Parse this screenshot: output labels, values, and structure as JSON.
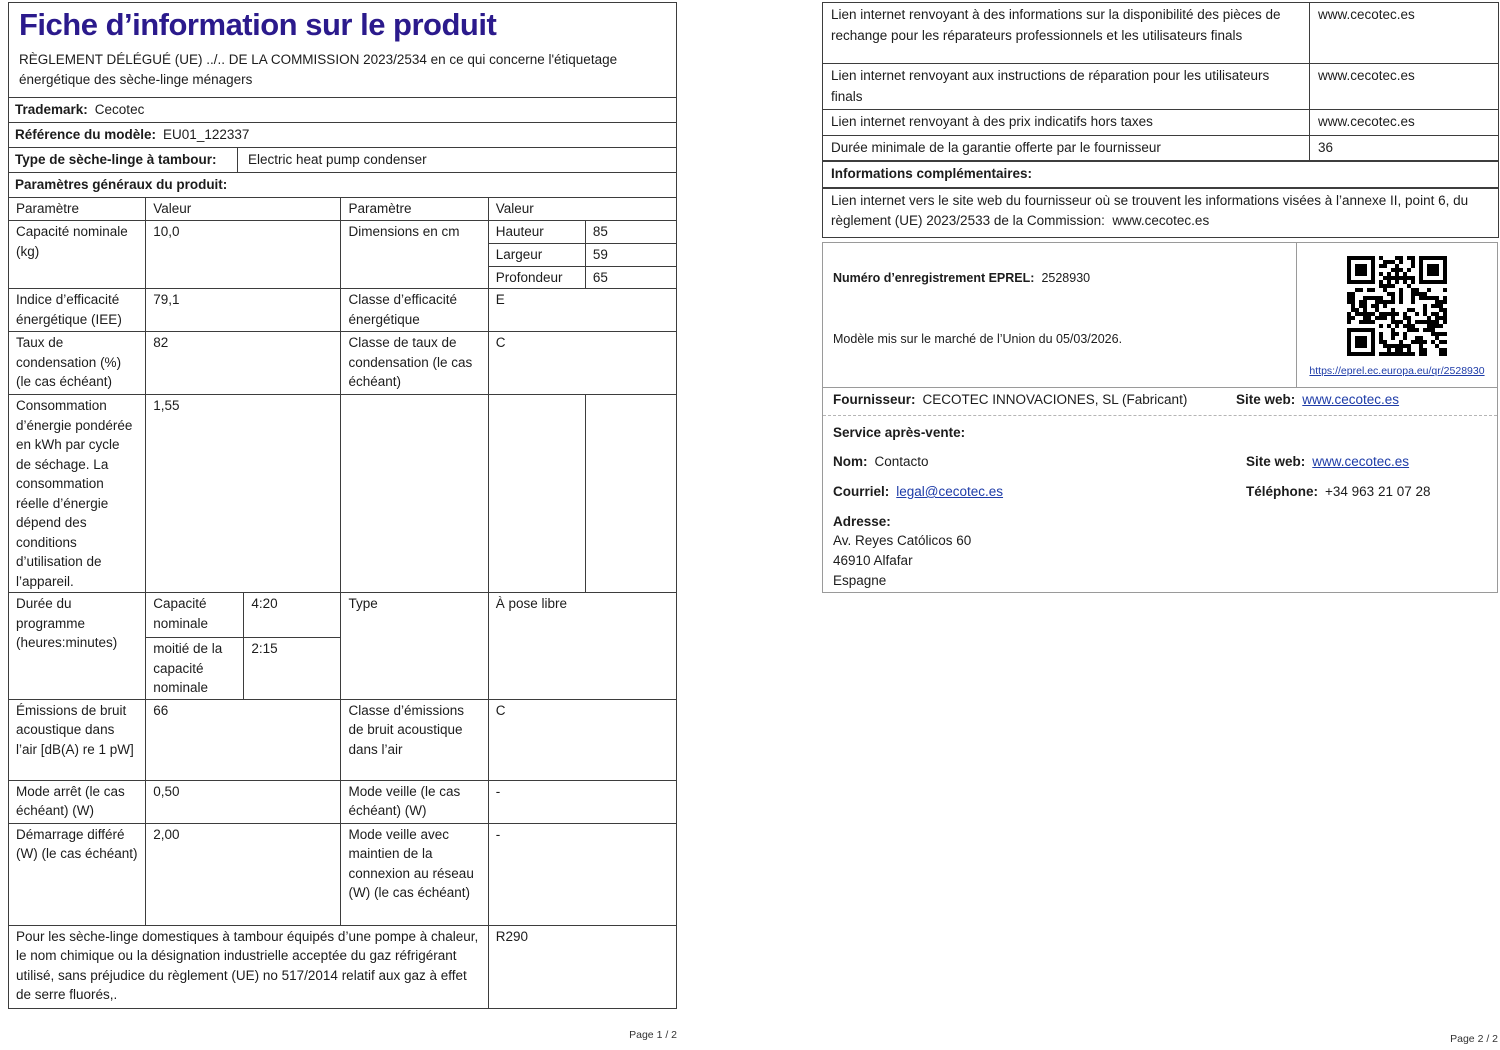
{
  "colors": {
    "title": "#2b1a8c",
    "link": "#1e3ca8"
  },
  "page1": {
    "title": "Fiche d’information sur le produit",
    "subtitle": "RÈGLEMENT DÉLÉGUÉ (UE) ../.. DE LA COMMISSION 2023/2534 en ce qui concerne l'étiquetage énergétique des sèche-linge ménagers",
    "trademark_label": "Trademark:",
    "trademark_value": "Cecotec",
    "model_label": "Référence du modèle:",
    "model_value": "EU01_122337",
    "type_label": "Type de sèche-linge à tambour:",
    "type_value": "Electric heat pump condenser",
    "params_header": "Paramètres généraux du produit:",
    "table": {
      "h_param": "Paramètre",
      "h_value": "Valeur",
      "capacity_label": "Capacité nominale (kg)",
      "capacity_value": "10,0",
      "dimensions_label": "Dimensions en cm",
      "dim_height_label": "Hauteur",
      "dim_height_value": "85",
      "dim_width_label": "Largeur",
      "dim_width_value": "59",
      "dim_depth_label": "Profondeur",
      "dim_depth_value": "65",
      "eei_label": "Indice d’efficacité énergétique (IEE)",
      "eei_value": "79,1",
      "eei_class_label": "Classe d’efficacité énergétique",
      "eei_class_value": "E",
      "cond_label": "Taux de condensation (%) (le cas échéant)",
      "cond_value": "82",
      "cond_class_label": "Classe de taux de condensation (le cas échéant)",
      "cond_class_value": "C",
      "energy_label": "Consommation d’énergie pondérée en kWh par cycle de séchage. La consommation réelle d’énergie dépend des conditions d’utilisation de l’appareil.",
      "energy_value": "1,55",
      "duration_label": "Durée du programme (heures:minutes)",
      "duration_rated_label": "Capacité nominale",
      "duration_rated_value": "4:20",
      "duration_half_label": "moitié de la capacité nominale",
      "duration_half_value": "2:15",
      "install_type_label": "Type",
      "install_type_value": "À pose libre",
      "noise_label": "Émissions de bruit acoustique dans l’air [dB(A) re 1 pW]",
      "noise_value": "66",
      "noise_class_label": "Classe d’émissions de bruit acoustique dans l’air",
      "noise_class_value": "C",
      "off_label": "Mode arrêt (le cas échéant) (W)",
      "off_value": "0,50",
      "standby_label": "Mode veille (le cas échéant) (W)",
      "standby_value": "-",
      "delay_label": "Démarrage différé (W) (le cas échéant)",
      "delay_value": "2,00",
      "network_label": "Mode veille avec maintien de la connexion au réseau (W) (le cas échéant)",
      "network_value": "-",
      "refrigerant_label": "Pour les sèche-linge domestiques à tambour équipés d’une pompe à chaleur, le nom chimique ou la désignation industrielle acceptée du gaz réfrigérant utilisé, sans préjudice du règlement (UE) no 517/2014 relatif aux gaz à effet de serre fluorés,.",
      "refrigerant_value": "R290"
    },
    "footer": "Page 1 / 2"
  },
  "page2": {
    "links": [
      {
        "label": "Lien internet renvoyant à des informations sur la disponibilité des pièces de rechange pour les réparateurs professionnels et les utilisateurs finals",
        "value": "www.cecotec.es"
      },
      {
        "label": "Lien internet renvoyant aux instructions de réparation pour les utilisateurs finals",
        "value": "www.cecotec.es"
      },
      {
        "label": "Lien internet renvoyant à des prix indicatifs hors taxes",
        "value": "www.cecotec.es"
      },
      {
        "label": "Durée minimale de la garantie offerte par le fournisseur",
        "value": "36"
      }
    ],
    "info_header": "Informations complémentaires:",
    "info_label": "Lien internet vers le site web du fournisseur où se trouvent les informations visées à l’annexe II, point 6, du règlement (UE) 2023/2533 de la Commission:",
    "info_value": "www.cecotec.es",
    "eprel_label": "Numéro d’enregistrement EPREL:",
    "eprel_value": "2528930",
    "market_text": "Modèle mis sur le marché de l’Union du 05/03/2026.",
    "qr_url": "https://eprel.ec.europa.eu/qr/2528930",
    "supplier_label": "Fournisseur:",
    "supplier_value": "CECOTEC INNOVACIONES, SL (Fabricant)",
    "siteweb_label": "Site web:",
    "siteweb_value": "www.cecotec.es",
    "service_header": "Service après-vente:",
    "name_label": "Nom:",
    "name_value": "Contacto",
    "email_label": "Courriel:",
    "email_value": "legal@cecotec.es",
    "phone_label": "Téléphone:",
    "phone_value": "+34 963 21 07 28",
    "address_label": "Adresse:",
    "address": {
      "lines": [
        "Av. Reyes Católicos 60",
        "46910 Alfafar",
        "Espagne"
      ]
    },
    "footer": "Page 2 / 2"
  }
}
